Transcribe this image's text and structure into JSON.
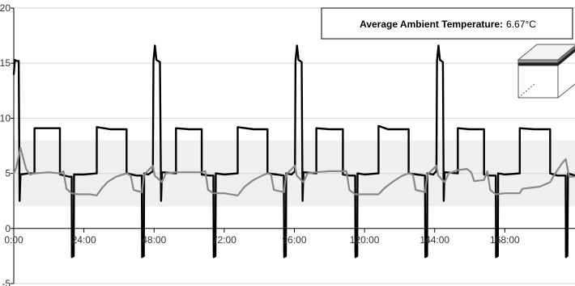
{
  "chart_data": {
    "type": "line",
    "x_unit": "hours",
    "xlim": [
      0,
      192
    ],
    "ylim": [
      -5,
      20
    ],
    "x_ticks": [
      0,
      24,
      48,
      72,
      96,
      120,
      144,
      168
    ],
    "x_tick_labels": [
      "0:00",
      "24:00",
      "48:00",
      "72:00",
      "96:00",
      "120:00",
      "144:00",
      "168:00"
    ],
    "y_ticks": [
      -5,
      0,
      5,
      10,
      15,
      20
    ],
    "y_tick_labels": [
      "-5",
      "0",
      "5",
      "10",
      "15",
      "20"
    ],
    "band": {
      "y_min": 2,
      "y_max": 8,
      "color": "#efefef"
    },
    "annotation": {
      "label": "Average Ambient Temperature:",
      "value": "6.67°C"
    },
    "series": [
      {
        "color": "#000000",
        "points": [
          [
            0,
            14
          ],
          [
            0.4,
            15.3
          ],
          [
            1,
            15.2
          ],
          [
            1.7,
            15.2
          ],
          [
            2,
            2.5
          ],
          [
            2.3,
            4.9
          ],
          [
            5,
            5.0
          ],
          [
            7.1,
            5.0
          ],
          [
            7.1,
            9.1
          ],
          [
            12,
            9.1
          ],
          [
            15.8,
            9.1
          ],
          [
            15.8,
            4.9
          ],
          [
            19,
            4.7
          ],
          [
            19.8,
            4.7
          ],
          [
            19.9,
            -2.6
          ],
          [
            20.5,
            -2.5
          ],
          [
            20.6,
            4.9
          ],
          [
            24,
            4.9
          ],
          [
            28.4,
            5.0
          ],
          [
            28.4,
            9.2
          ],
          [
            33,
            9.0
          ],
          [
            38.6,
            9.0
          ],
          [
            38.6,
            5.0
          ],
          [
            42,
            4.8
          ],
          [
            43.8,
            4.8
          ],
          [
            43.9,
            -2.6
          ],
          [
            44.5,
            -2.5
          ],
          [
            44.6,
            5.0
          ],
          [
            46,
            4.9
          ],
          [
            47.6,
            5.2
          ],
          [
            47.8,
            15.2
          ],
          [
            48.3,
            16.6
          ],
          [
            48.8,
            15.3
          ],
          [
            50,
            15.1
          ],
          [
            50.4,
            2.5
          ],
          [
            50.7,
            5.1
          ],
          [
            55.5,
            5.0
          ],
          [
            55.5,
            9.1
          ],
          [
            60,
            9.0
          ],
          [
            64.3,
            9.0
          ],
          [
            64.3,
            4.9
          ],
          [
            67,
            4.8
          ],
          [
            68.3,
            4.8
          ],
          [
            68.4,
            -2.6
          ],
          [
            69,
            -2.5
          ],
          [
            69.1,
            5.0
          ],
          [
            72,
            4.9
          ],
          [
            76.6,
            5.0
          ],
          [
            76.6,
            9.2
          ],
          [
            82,
            9.0
          ],
          [
            86.8,
            9.0
          ],
          [
            86.8,
            5.0
          ],
          [
            90,
            4.9
          ],
          [
            92.4,
            4.8
          ],
          [
            92.5,
            -2.6
          ],
          [
            93.1,
            -2.5
          ],
          [
            93.2,
            5.0
          ],
          [
            95,
            4.9
          ],
          [
            96.2,
            5.2
          ],
          [
            96.4,
            15.2
          ],
          [
            96.9,
            16.6
          ],
          [
            97.4,
            15.3
          ],
          [
            98.5,
            15.1
          ],
          [
            98.8,
            2.5
          ],
          [
            99.1,
            5.1
          ],
          [
            103.5,
            5.0
          ],
          [
            103.5,
            9.1
          ],
          [
            108,
            9.0
          ],
          [
            112.6,
            9.0
          ],
          [
            112.6,
            4.9
          ],
          [
            115,
            4.8
          ],
          [
            116.8,
            4.8
          ],
          [
            116.9,
            -2.6
          ],
          [
            117.5,
            -2.5
          ],
          [
            117.6,
            5.0
          ],
          [
            120,
            4.9
          ],
          [
            124.8,
            5.0
          ],
          [
            124.8,
            9.3
          ],
          [
            128,
            9.0
          ],
          [
            135.1,
            9.0
          ],
          [
            135.1,
            5.0
          ],
          [
            138,
            4.9
          ],
          [
            140.7,
            4.8
          ],
          [
            140.8,
            -2.6
          ],
          [
            141.4,
            -2.5
          ],
          [
            141.5,
            5.0
          ],
          [
            143.5,
            4.9
          ],
          [
            144.6,
            5.2
          ],
          [
            144.8,
            15.2
          ],
          [
            145.3,
            16.6
          ],
          [
            145.8,
            15.3
          ],
          [
            146.8,
            15.1
          ],
          [
            147.1,
            2.5
          ],
          [
            147.4,
            5.1
          ],
          [
            151.9,
            5.0
          ],
          [
            151.9,
            9.1
          ],
          [
            156,
            9.0
          ],
          [
            160.9,
            9.0
          ],
          [
            160.9,
            4.9
          ],
          [
            163,
            4.8
          ],
          [
            164.9,
            4.8
          ],
          [
            165,
            -2.6
          ],
          [
            165.6,
            -2.5
          ],
          [
            165.7,
            5.0
          ],
          [
            168,
            4.9
          ],
          [
            173.1,
            5.0
          ],
          [
            173.1,
            9.1
          ],
          [
            178,
            9.0
          ],
          [
            183.5,
            9.0
          ],
          [
            183.5,
            5.0
          ],
          [
            186,
            4.8
          ],
          [
            188.8,
            4.8
          ],
          [
            188.9,
            -2.6
          ],
          [
            189.4,
            -2.5
          ],
          [
            189.6,
            5.0
          ],
          [
            192,
            4.8
          ]
        ]
      },
      {
        "color": "#888888",
        "points": [
          [
            0,
            5.0
          ],
          [
            0.8,
            5.5
          ],
          [
            2.3,
            7.3
          ],
          [
            4.2,
            5.4
          ],
          [
            5.5,
            4.9
          ],
          [
            7.1,
            5.0
          ],
          [
            12,
            5.1
          ],
          [
            15.8,
            5.0
          ],
          [
            17,
            5.2
          ],
          [
            18,
            3.6
          ],
          [
            19.8,
            3.2
          ],
          [
            22,
            3.1
          ],
          [
            26,
            3.1
          ],
          [
            28.4,
            3.0
          ],
          [
            30,
            3.6
          ],
          [
            32,
            4.2
          ],
          [
            35,
            4.7
          ],
          [
            38.6,
            5.0
          ],
          [
            40,
            4.8
          ],
          [
            41,
            3.5
          ],
          [
            43.8,
            3.3
          ],
          [
            44.6,
            4.9
          ],
          [
            47.6,
            5.7
          ],
          [
            48.2,
            4.8
          ],
          [
            50.7,
            4.2
          ],
          [
            52,
            5.0
          ],
          [
            55.5,
            5.1
          ],
          [
            60,
            5.1
          ],
          [
            64.3,
            5.1
          ],
          [
            65.5,
            5.2
          ],
          [
            66.5,
            3.5
          ],
          [
            68.3,
            3.2
          ],
          [
            72,
            3.2
          ],
          [
            76.6,
            3.0
          ],
          [
            79,
            3.8
          ],
          [
            82,
            4.4
          ],
          [
            85,
            4.8
          ],
          [
            86.8,
            5.0
          ],
          [
            88,
            4.9
          ],
          [
            89,
            3.5
          ],
          [
            92.4,
            3.3
          ],
          [
            93.2,
            4.9
          ],
          [
            96.2,
            5.7
          ],
          [
            96.8,
            4.8
          ],
          [
            99.1,
            4.2
          ],
          [
            100.5,
            5.0
          ],
          [
            103.5,
            5.1
          ],
          [
            108,
            5.2
          ],
          [
            112.6,
            5.2
          ],
          [
            113.8,
            5.2
          ],
          [
            114.8,
            3.5
          ],
          [
            116.8,
            3.1
          ],
          [
            120,
            3.1
          ],
          [
            124.8,
            3.1
          ],
          [
            127,
            3.7
          ],
          [
            130,
            4.3
          ],
          [
            133,
            4.8
          ],
          [
            135.1,
            5.0
          ],
          [
            136.5,
            4.9
          ],
          [
            137.5,
            3.5
          ],
          [
            140.7,
            3.3
          ],
          [
            141.5,
            4.9
          ],
          [
            144.6,
            5.7
          ],
          [
            145.2,
            4.8
          ],
          [
            147.4,
            4.2
          ],
          [
            148.8,
            5.0
          ],
          [
            151.9,
            5.3
          ],
          [
            155,
            5.4
          ],
          [
            156.5,
            5.1
          ],
          [
            157.5,
            4.3
          ],
          [
            160.9,
            4.4
          ],
          [
            162,
            5.2
          ],
          [
            163,
            3.5
          ],
          [
            164.9,
            3.1
          ],
          [
            168,
            3.2
          ],
          [
            173.1,
            3.2
          ],
          [
            174,
            3.6
          ],
          [
            180,
            3.8
          ],
          [
            183.5,
            4.2
          ],
          [
            185,
            4.9
          ],
          [
            187.5,
            5.9
          ],
          [
            188.8,
            6.3
          ],
          [
            190,
            4.7
          ],
          [
            192,
            4.7
          ]
        ]
      }
    ]
  }
}
